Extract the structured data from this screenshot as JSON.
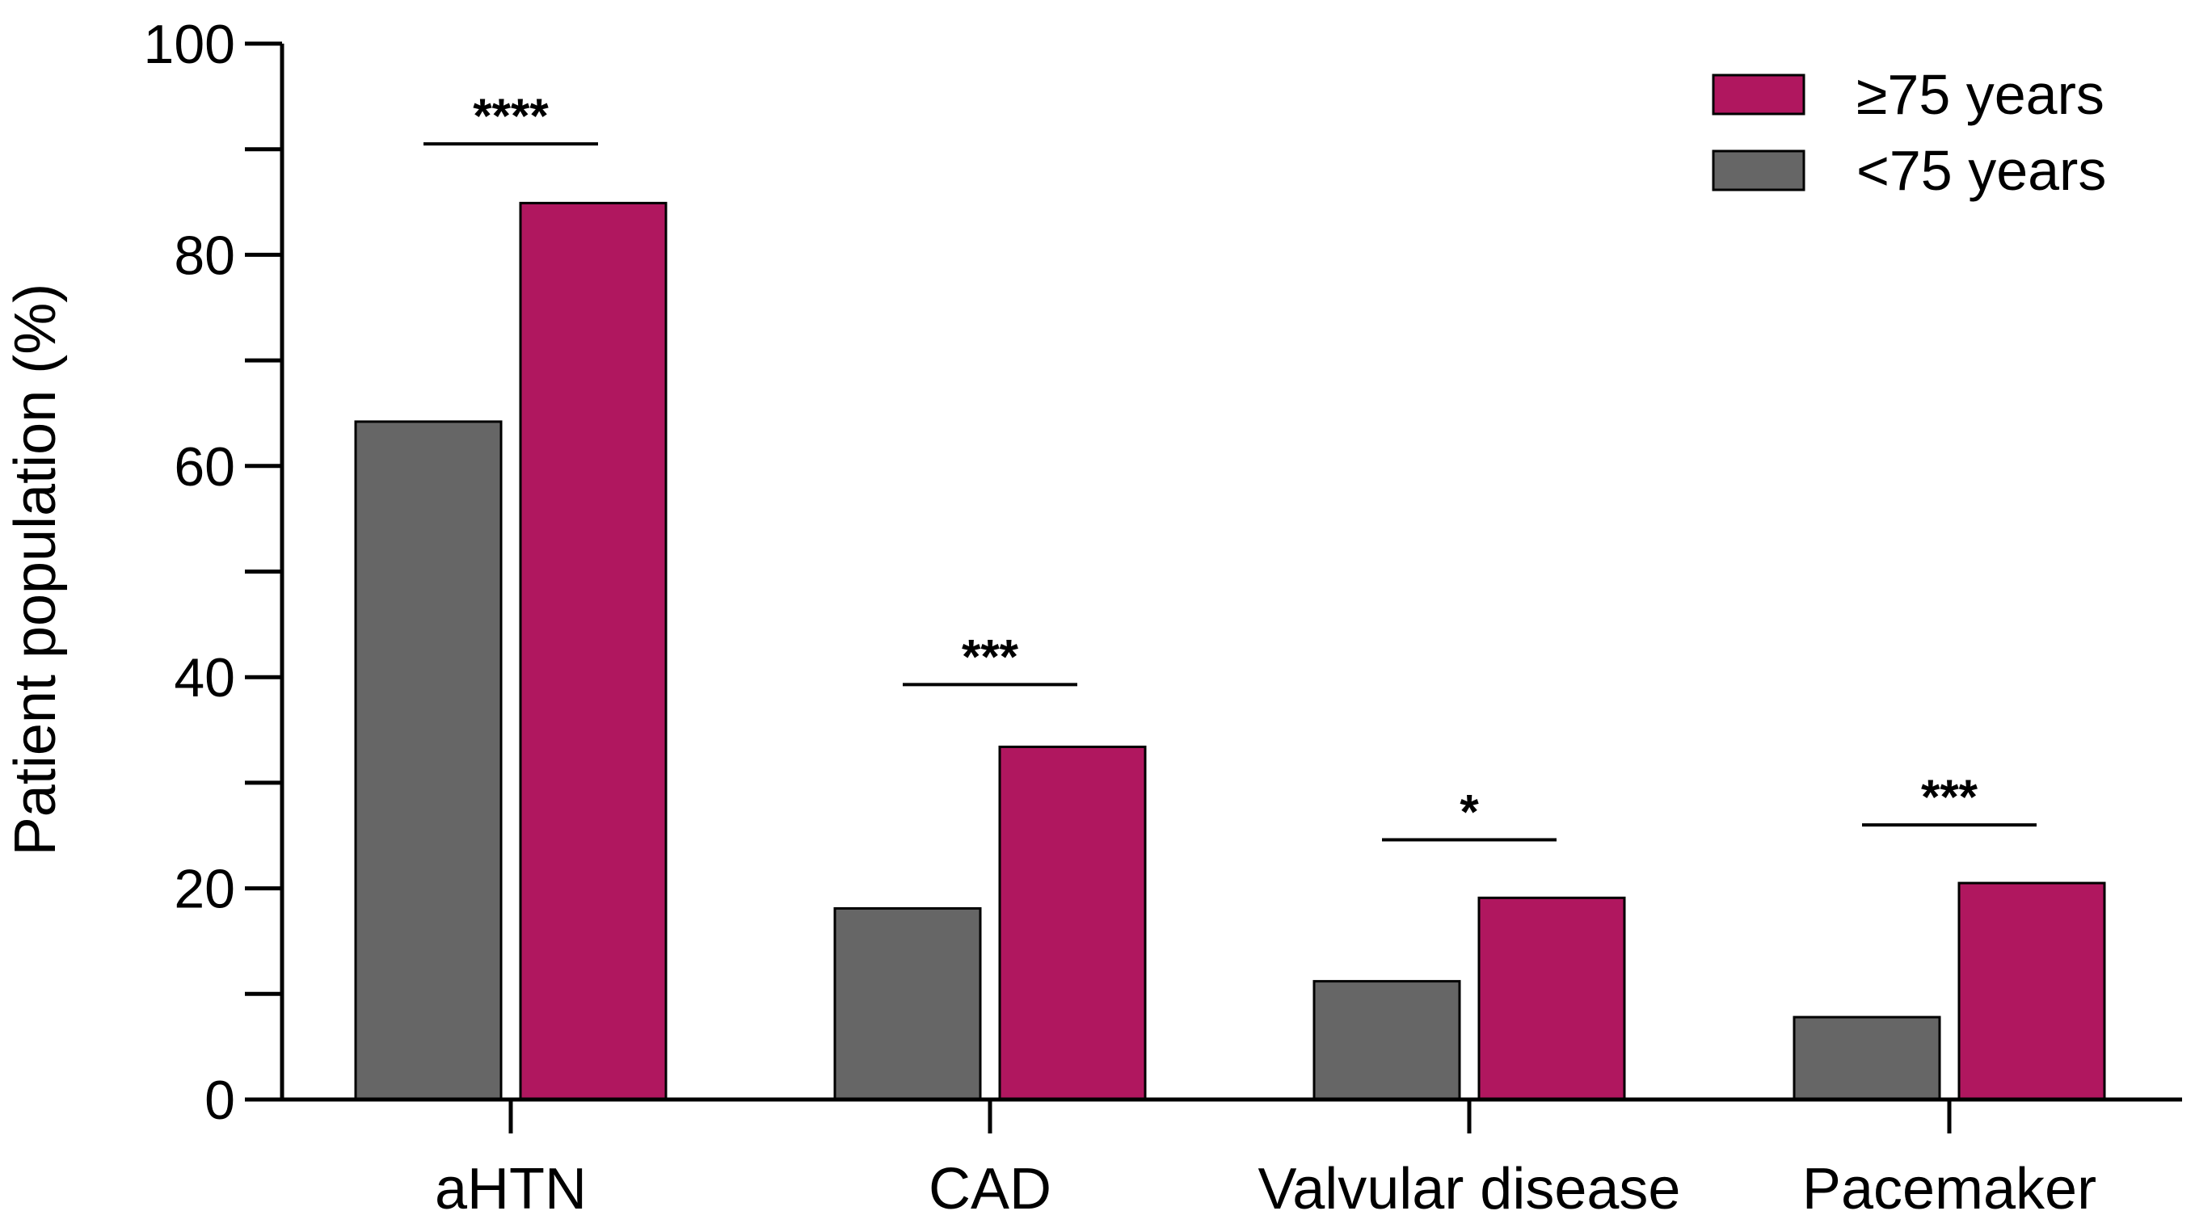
{
  "chart_data": {
    "type": "bar",
    "title": "",
    "xlabel": "",
    "ylabel": "Patient population (%)",
    "ylim": [
      0,
      100
    ],
    "yticks": [
      0,
      20,
      40,
      60,
      80,
      100
    ],
    "yminor_step": 10,
    "categories": [
      "aHTN",
      "CAD",
      "Valvular disease",
      "Pacemaker"
    ],
    "series": [
      {
        "name": "<75 years",
        "color": "#666666",
        "values": [
          64.2,
          18.1,
          11.2,
          7.8
        ]
      },
      {
        "name": "≥75 years",
        "color": "#b0175f",
        "values": [
          84.9,
          33.4,
          19.1,
          20.5
        ]
      }
    ],
    "significance": [
      {
        "category": "aHTN",
        "label": "****",
        "level": 90.5
      },
      {
        "category": "CAD",
        "label": "***",
        "level": 39.3
      },
      {
        "category": "Valvular disease",
        "label": "*",
        "level": 24.6
      },
      {
        "category": "Pacemaker",
        "label": "***",
        "level": 26.0
      }
    ],
    "legend": {
      "placement": "top-right",
      "order": [
        "≥75 years",
        "<75 years"
      ]
    },
    "grid": false
  }
}
